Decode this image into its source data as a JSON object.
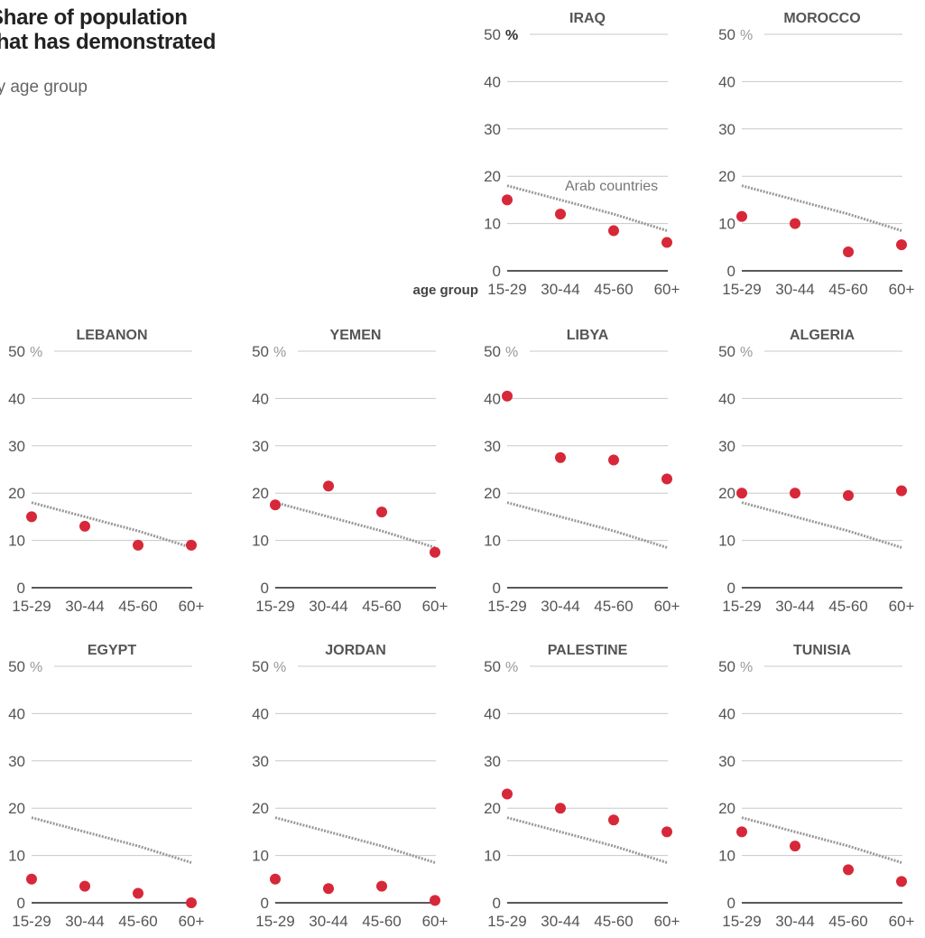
{
  "title": "Share of population that has demonstrated",
  "subtitle": "by age group",
  "colors": {
    "dot": "#d62839",
    "reference_line": "#999999",
    "gridline": "#c8c8c8",
    "baseline": "#222222"
  },
  "chart_data": [
    {
      "type": "scatter",
      "title": "IRAQ",
      "categories": [
        "15-29",
        "30-44",
        "45-60",
        "60+"
      ],
      "values": [
        15,
        12,
        8.5,
        6
      ],
      "ylim": [
        0,
        50
      ],
      "yticks": [
        0,
        10,
        20,
        30,
        40,
        50
      ],
      "yunit": "%",
      "xlabel": "age group",
      "reference": {
        "label": "Arab countries",
        "values": [
          18,
          15,
          12,
          8.5
        ]
      }
    },
    {
      "type": "scatter",
      "title": "MOROCCO",
      "categories": [
        "15-29",
        "30-44",
        "45-60",
        "60+"
      ],
      "values": [
        11.5,
        10,
        4,
        5.5
      ],
      "ylim": [
        0,
        50
      ],
      "yticks": [
        0,
        10,
        20,
        30,
        40,
        50
      ],
      "yunit": "%",
      "reference": {
        "values": [
          18,
          15,
          12,
          8.5
        ]
      }
    },
    {
      "type": "scatter",
      "title": "LEBANON",
      "categories": [
        "15-29",
        "30-44",
        "45-60",
        "60+"
      ],
      "values": [
        15,
        13,
        9,
        9
      ],
      "ylim": [
        0,
        50
      ],
      "yticks": [
        0,
        10,
        20,
        30,
        40,
        50
      ],
      "yunit": "%",
      "reference": {
        "values": [
          18,
          15,
          12,
          8.5
        ]
      }
    },
    {
      "type": "scatter",
      "title": "YEMEN",
      "categories": [
        "15-29",
        "30-44",
        "45-60",
        "60+"
      ],
      "values": [
        17.5,
        21.5,
        16,
        7.5
      ],
      "ylim": [
        0,
        50
      ],
      "yticks": [
        0,
        10,
        20,
        30,
        40,
        50
      ],
      "yunit": "%",
      "reference": {
        "values": [
          18,
          15,
          12,
          8.5
        ]
      }
    },
    {
      "type": "scatter",
      "title": "LIBYA",
      "categories": [
        "15-29",
        "30-44",
        "45-60",
        "60+"
      ],
      "values": [
        40.5,
        27.5,
        27,
        23
      ],
      "ylim": [
        0,
        50
      ],
      "yticks": [
        0,
        10,
        20,
        30,
        40,
        50
      ],
      "yunit": "%",
      "reference": {
        "values": [
          18,
          15,
          12,
          8.5
        ]
      }
    },
    {
      "type": "scatter",
      "title": "ALGERIA",
      "categories": [
        "15-29",
        "30-44",
        "45-60",
        "60+"
      ],
      "values": [
        20,
        20,
        19.5,
        20.5
      ],
      "ylim": [
        0,
        50
      ],
      "yticks": [
        0,
        10,
        20,
        30,
        40,
        50
      ],
      "yunit": "%",
      "reference": {
        "values": [
          18,
          15,
          12,
          8.5
        ]
      }
    },
    {
      "type": "scatter",
      "title": "EGYPT",
      "categories": [
        "15-29",
        "30-44",
        "45-60",
        "60+"
      ],
      "values": [
        5,
        3.5,
        2,
        0
      ],
      "ylim": [
        0,
        50
      ],
      "yticks": [
        0,
        10,
        20,
        30,
        40,
        50
      ],
      "yunit": "%",
      "reference": {
        "values": [
          18,
          15,
          12,
          8.5
        ]
      }
    },
    {
      "type": "scatter",
      "title": "JORDAN",
      "categories": [
        "15-29",
        "30-44",
        "45-60",
        "60+"
      ],
      "values": [
        5,
        3,
        3.5,
        0.5
      ],
      "ylim": [
        0,
        50
      ],
      "yticks": [
        0,
        10,
        20,
        30,
        40,
        50
      ],
      "yunit": "%",
      "reference": {
        "values": [
          18,
          15,
          12,
          8.5
        ]
      }
    },
    {
      "type": "scatter",
      "title": "PALESTINE",
      "categories": [
        "15-29",
        "30-44",
        "45-60",
        "60+"
      ],
      "values": [
        23,
        20,
        17.5,
        15
      ],
      "ylim": [
        0,
        50
      ],
      "yticks": [
        0,
        10,
        20,
        30,
        40,
        50
      ],
      "yunit": "%",
      "reference": {
        "values": [
          18,
          15,
          12,
          8.5
        ]
      }
    },
    {
      "type": "scatter",
      "title": "TUNISIA",
      "categories": [
        "15-29",
        "30-44",
        "45-60",
        "60+"
      ],
      "values": [
        15,
        12,
        7,
        4.5
      ],
      "ylim": [
        0,
        50
      ],
      "yticks": [
        0,
        10,
        20,
        30,
        40,
        50
      ],
      "yunit": "%",
      "reference": {
        "values": [
          18,
          15,
          12,
          8.5
        ]
      }
    }
  ]
}
